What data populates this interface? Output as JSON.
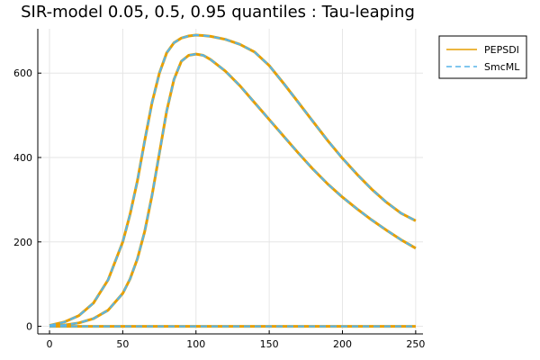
{
  "chart_data": {
    "type": "line",
    "title": "SIR-model 0.05, 0.5, 0.95 quantiles : Tau-leaping",
    "xlabel": "",
    "ylabel": "",
    "xlim": [
      -8,
      255
    ],
    "ylim": [
      -18,
      705
    ],
    "xticks": [
      0,
      50,
      100,
      150,
      200,
      250
    ],
    "yticks": [
      0,
      200,
      400,
      600
    ],
    "grid": true,
    "legend_position": "top-right",
    "colors": {
      "PEPSDI": "#e69f00",
      "SmcML": "#56b4e9"
    },
    "series": [
      {
        "name": "PEPSDI",
        "quantile": "0.95",
        "x": [
          0,
          10,
          20,
          30,
          40,
          50,
          55,
          60,
          65,
          70,
          75,
          80,
          85,
          90,
          95,
          100,
          105,
          110,
          120,
          130,
          140,
          150,
          160,
          170,
          180,
          190,
          200,
          210,
          220,
          230,
          240,
          250
        ],
        "y": [
          2,
          10,
          25,
          55,
          110,
          200,
          265,
          345,
          440,
          530,
          600,
          648,
          672,
          683,
          688,
          690,
          689,
          687,
          680,
          668,
          650,
          618,
          575,
          530,
          485,
          440,
          398,
          360,
          325,
          294,
          268,
          250
        ]
      },
      {
        "name": "PEPSDI",
        "quantile": "0.5",
        "x": [
          0,
          10,
          20,
          30,
          40,
          50,
          55,
          60,
          65,
          70,
          75,
          80,
          85,
          90,
          95,
          100,
          105,
          110,
          120,
          130,
          140,
          150,
          160,
          170,
          180,
          190,
          200,
          210,
          220,
          230,
          240,
          250
        ],
        "y": [
          1,
          3,
          8,
          18,
          38,
          78,
          112,
          160,
          225,
          310,
          410,
          510,
          585,
          628,
          642,
          645,
          642,
          632,
          605,
          570,
          530,
          490,
          450,
          410,
          372,
          337,
          306,
          278,
          252,
          228,
          205,
          185
        ]
      },
      {
        "name": "PEPSDI",
        "quantile": "0.05",
        "x": [
          0,
          50,
          100,
          150,
          200,
          250
        ],
        "y": [
          0,
          0,
          0,
          0,
          0,
          0
        ]
      },
      {
        "name": "SmcML",
        "quantile": "0.95",
        "x": [
          0,
          10,
          20,
          30,
          40,
          50,
          55,
          60,
          65,
          70,
          75,
          80,
          85,
          90,
          95,
          100,
          105,
          110,
          120,
          130,
          140,
          150,
          160,
          170,
          180,
          190,
          200,
          210,
          220,
          230,
          240,
          250
        ],
        "y": [
          2,
          10,
          25,
          55,
          110,
          200,
          265,
          345,
          440,
          530,
          600,
          648,
          672,
          683,
          688,
          690,
          689,
          687,
          680,
          668,
          650,
          618,
          575,
          530,
          485,
          440,
          398,
          360,
          325,
          294,
          268,
          250
        ]
      },
      {
        "name": "SmcML",
        "quantile": "0.5",
        "x": [
          0,
          10,
          20,
          30,
          40,
          50,
          55,
          60,
          65,
          70,
          75,
          80,
          85,
          90,
          95,
          100,
          105,
          110,
          120,
          130,
          140,
          150,
          160,
          170,
          180,
          190,
          200,
          210,
          220,
          230,
          240,
          250
        ],
        "y": [
          1,
          3,
          8,
          18,
          38,
          78,
          112,
          160,
          225,
          310,
          410,
          510,
          585,
          628,
          642,
          645,
          642,
          632,
          605,
          570,
          530,
          490,
          450,
          410,
          372,
          337,
          306,
          278,
          252,
          228,
          205,
          185
        ]
      },
      {
        "name": "SmcML",
        "quantile": "0.05",
        "x": [
          0,
          50,
          100,
          150,
          200,
          250
        ],
        "y": [
          0,
          0,
          0,
          0,
          0,
          0
        ]
      }
    ],
    "legend": [
      "PEPSDI",
      "SmcML"
    ]
  }
}
